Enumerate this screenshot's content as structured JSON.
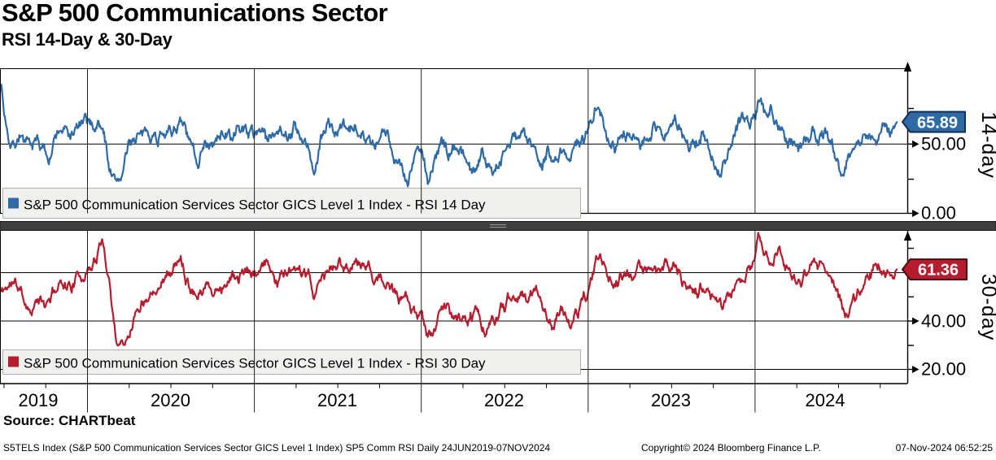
{
  "header": {
    "title": "S&P 500 Communications Sector",
    "subtitle": "RSI 14-Day & 30-Day"
  },
  "footer": {
    "source": "Source: CHARTbeat",
    "info_left": "S5TELS Index (S&P 500 Communication Services Sector GICS Level 1 Index) SP5 Comm RSI  Daily 24JUN2019-07NOV2024",
    "copyright": "Copyright© 2024 Bloomberg Finance L.P.",
    "timestamp": "07-Nov-2024 06:52:25"
  },
  "chart_data": {
    "type": "line",
    "x_range": [
      2019.48,
      2024.85
    ],
    "x_axis": {
      "year_labels": [
        "2019",
        "2020",
        "2021",
        "2022",
        "2023",
        "2024"
      ],
      "year_boundaries": [
        2020,
        2021,
        2022,
        2023,
        2024
      ]
    },
    "panels": [
      {
        "name": "rsi14",
        "axis_label": "14-day",
        "legend": "S&P 500 Communication Services Sector GICS Level 1 Index - RSI 14 Day",
        "color": "#2d6aa6",
        "flag_border": "#14304f",
        "last_value": "65.89",
        "ylim": [
          0,
          105
        ],
        "tick_labels": [
          {
            "value": 50,
            "label": "50.00"
          },
          {
            "value": 0,
            "label": "0.00"
          }
        ],
        "minor_ticks": [
          25,
          75
        ],
        "gridlines": [
          50
        ],
        "noise": {
          "seed": 7,
          "decay": 0.86,
          "step": 7.0,
          "ripple": 1.6,
          "points": 1300
        },
        "anchors": [
          [
            2019.485,
            92
          ],
          [
            2019.5,
            72
          ],
          [
            2019.53,
            58
          ],
          [
            2019.56,
            52
          ],
          [
            2019.6,
            60
          ],
          [
            2019.63,
            50
          ],
          [
            2019.66,
            44
          ],
          [
            2019.7,
            53
          ],
          [
            2019.73,
            46
          ],
          [
            2019.77,
            42
          ],
          [
            2019.81,
            55
          ],
          [
            2019.85,
            62
          ],
          [
            2019.89,
            55
          ],
          [
            2019.93,
            60
          ],
          [
            2019.97,
            64
          ],
          [
            2020.03,
            62
          ],
          [
            2020.07,
            66
          ],
          [
            2020.1,
            55
          ],
          [
            2020.13,
            35
          ],
          [
            2020.17,
            21
          ],
          [
            2020.21,
            30
          ],
          [
            2020.25,
            48
          ],
          [
            2020.3,
            58
          ],
          [
            2020.34,
            52
          ],
          [
            2020.38,
            60
          ],
          [
            2020.42,
            55
          ],
          [
            2020.46,
            64
          ],
          [
            2020.5,
            57
          ],
          [
            2020.54,
            66
          ],
          [
            2020.58,
            60
          ],
          [
            2020.62,
            45
          ],
          [
            2020.66,
            38
          ],
          [
            2020.7,
            56
          ],
          [
            2020.74,
            46
          ],
          [
            2020.78,
            52
          ],
          [
            2020.82,
            60
          ],
          [
            2020.86,
            54
          ],
          [
            2020.9,
            58
          ],
          [
            2020.94,
            62
          ],
          [
            2021.0,
            57
          ],
          [
            2021.04,
            64
          ],
          [
            2021.08,
            52
          ],
          [
            2021.12,
            60
          ],
          [
            2021.16,
            66
          ],
          [
            2021.2,
            58
          ],
          [
            2021.24,
            64
          ],
          [
            2021.28,
            50
          ],
          [
            2021.32,
            45
          ],
          [
            2021.36,
            29
          ],
          [
            2021.4,
            50
          ],
          [
            2021.44,
            66
          ],
          [
            2021.48,
            58
          ],
          [
            2021.52,
            62
          ],
          [
            2021.56,
            54
          ],
          [
            2021.6,
            60
          ],
          [
            2021.64,
            65
          ],
          [
            2021.68,
            55
          ],
          [
            2021.72,
            45
          ],
          [
            2021.76,
            52
          ],
          [
            2021.8,
            58
          ],
          [
            2021.84,
            44
          ],
          [
            2021.88,
            38
          ],
          [
            2021.92,
            24
          ],
          [
            2021.96,
            42
          ],
          [
            2022.0,
            48
          ],
          [
            2022.04,
            24
          ],
          [
            2022.08,
            40
          ],
          [
            2022.12,
            50
          ],
          [
            2022.16,
            42
          ],
          [
            2022.2,
            52
          ],
          [
            2022.24,
            45
          ],
          [
            2022.28,
            35
          ],
          [
            2022.32,
            29
          ],
          [
            2022.36,
            45
          ],
          [
            2022.4,
            38
          ],
          [
            2022.44,
            33
          ],
          [
            2022.48,
            42
          ],
          [
            2022.52,
            48
          ],
          [
            2022.56,
            55
          ],
          [
            2022.6,
            60
          ],
          [
            2022.64,
            50
          ],
          [
            2022.68,
            42
          ],
          [
            2022.72,
            33
          ],
          [
            2022.76,
            44
          ],
          [
            2022.8,
            40
          ],
          [
            2022.84,
            50
          ],
          [
            2022.88,
            44
          ],
          [
            2022.92,
            52
          ],
          [
            2022.96,
            50
          ],
          [
            2023.0,
            58
          ],
          [
            2023.04,
            76
          ],
          [
            2023.08,
            66
          ],
          [
            2023.12,
            55
          ],
          [
            2023.16,
            48
          ],
          [
            2023.2,
            60
          ],
          [
            2023.24,
            55
          ],
          [
            2023.28,
            62
          ],
          [
            2023.32,
            52
          ],
          [
            2023.36,
            60
          ],
          [
            2023.4,
            66
          ],
          [
            2023.44,
            58
          ],
          [
            2023.48,
            64
          ],
          [
            2023.52,
            68
          ],
          [
            2023.56,
            58
          ],
          [
            2023.6,
            50
          ],
          [
            2023.64,
            44
          ],
          [
            2023.68,
            55
          ],
          [
            2023.72,
            48
          ],
          [
            2023.76,
            40
          ],
          [
            2023.8,
            31
          ],
          [
            2023.84,
            45
          ],
          [
            2023.88,
            58
          ],
          [
            2023.92,
            66
          ],
          [
            2023.96,
            62
          ],
          [
            2024.0,
            72
          ],
          [
            2024.02,
            85
          ],
          [
            2024.06,
            70
          ],
          [
            2024.1,
            74
          ],
          [
            2024.14,
            66
          ],
          [
            2024.18,
            58
          ],
          [
            2024.22,
            52
          ],
          [
            2024.26,
            46
          ],
          [
            2024.3,
            55
          ],
          [
            2024.34,
            62
          ],
          [
            2024.38,
            56
          ],
          [
            2024.42,
            60
          ],
          [
            2024.46,
            52
          ],
          [
            2024.5,
            34
          ],
          [
            2024.53,
            30
          ],
          [
            2024.57,
            45
          ],
          [
            2024.61,
            52
          ],
          [
            2024.65,
            58
          ],
          [
            2024.69,
            52
          ],
          [
            2024.73,
            58
          ],
          [
            2024.77,
            64
          ],
          [
            2024.81,
            58
          ],
          [
            2024.85,
            65.89
          ]
        ]
      },
      {
        "name": "rsi30",
        "axis_label": "30-day",
        "legend": "S&P 500 Communication Services Sector GICS Level 1 Index - RSI 30 Day",
        "color": "#b51c2e",
        "flag_border": "#4d0a12",
        "last_value": "61.36",
        "ylim": [
          15,
          77
        ],
        "tick_labels": [
          {
            "value": 40,
            "label": "40.00"
          },
          {
            "value": 20,
            "label": "20.00"
          }
        ],
        "minor_ticks": [
          30,
          50,
          70
        ],
        "gridlines": [
          60,
          40,
          20
        ],
        "noise": {
          "seed": 11,
          "decay": 0.88,
          "step": 3.6,
          "ripple": 1.0,
          "points": 1300
        },
        "anchors": [
          [
            2019.485,
            52
          ],
          [
            2019.55,
            56
          ],
          [
            2019.6,
            52
          ],
          [
            2019.65,
            46
          ],
          [
            2019.7,
            49
          ],
          [
            2019.75,
            45
          ],
          [
            2019.8,
            52
          ],
          [
            2019.85,
            57
          ],
          [
            2019.9,
            55
          ],
          [
            2019.95,
            59
          ],
          [
            2020.0,
            62
          ],
          [
            2020.05,
            67
          ],
          [
            2020.09,
            72
          ],
          [
            2020.13,
            58
          ],
          [
            2020.17,
            34
          ],
          [
            2020.21,
            32
          ],
          [
            2020.26,
            40
          ],
          [
            2020.31,
            48
          ],
          [
            2020.36,
            53
          ],
          [
            2020.41,
            57
          ],
          [
            2020.46,
            60
          ],
          [
            2020.51,
            62
          ],
          [
            2020.56,
            65
          ],
          [
            2020.61,
            57
          ],
          [
            2020.66,
            52
          ],
          [
            2020.71,
            57
          ],
          [
            2020.76,
            52
          ],
          [
            2020.81,
            56
          ],
          [
            2020.86,
            59
          ],
          [
            2020.91,
            58
          ],
          [
            2020.96,
            60
          ],
          [
            2021.02,
            59
          ],
          [
            2021.08,
            62
          ],
          [
            2021.14,
            57
          ],
          [
            2021.2,
            62
          ],
          [
            2021.26,
            58
          ],
          [
            2021.32,
            56
          ],
          [
            2021.36,
            50
          ],
          [
            2021.4,
            56
          ],
          [
            2021.44,
            60
          ],
          [
            2021.5,
            63
          ],
          [
            2021.56,
            62
          ],
          [
            2021.62,
            66
          ],
          [
            2021.66,
            63
          ],
          [
            2021.72,
            60
          ],
          [
            2021.78,
            56
          ],
          [
            2021.84,
            50
          ],
          [
            2021.9,
            46
          ],
          [
            2021.96,
            44
          ],
          [
            2022.0,
            40
          ],
          [
            2022.04,
            32
          ],
          [
            2022.09,
            40
          ],
          [
            2022.14,
            46
          ],
          [
            2022.19,
            42
          ],
          [
            2022.24,
            38
          ],
          [
            2022.29,
            41
          ],
          [
            2022.34,
            43
          ],
          [
            2022.39,
            36
          ],
          [
            2022.44,
            40
          ],
          [
            2022.49,
            45
          ],
          [
            2022.54,
            50
          ],
          [
            2022.59,
            54
          ],
          [
            2022.64,
            48
          ],
          [
            2022.69,
            53
          ],
          [
            2022.74,
            46
          ],
          [
            2022.79,
            39
          ],
          [
            2022.84,
            44
          ],
          [
            2022.89,
            40
          ],
          [
            2022.94,
            44
          ],
          [
            2023.0,
            52
          ],
          [
            2023.05,
            66
          ],
          [
            2023.1,
            61
          ],
          [
            2023.15,
            56
          ],
          [
            2023.2,
            59
          ],
          [
            2023.25,
            57
          ],
          [
            2023.3,
            60
          ],
          [
            2023.35,
            62
          ],
          [
            2023.4,
            60
          ],
          [
            2023.45,
            61
          ],
          [
            2023.5,
            64
          ],
          [
            2023.55,
            61
          ],
          [
            2023.6,
            55
          ],
          [
            2023.65,
            52
          ],
          [
            2023.7,
            55
          ],
          [
            2023.75,
            50
          ],
          [
            2023.8,
            42
          ],
          [
            2023.85,
            47
          ],
          [
            2023.9,
            57
          ],
          [
            2023.95,
            61
          ],
          [
            2024.0,
            66
          ],
          [
            2024.02,
            74
          ],
          [
            2024.06,
            68
          ],
          [
            2024.1,
            66
          ],
          [
            2024.14,
            70
          ],
          [
            2024.18,
            64
          ],
          [
            2024.22,
            60
          ],
          [
            2024.26,
            56
          ],
          [
            2024.3,
            58
          ],
          [
            2024.34,
            61
          ],
          [
            2024.38,
            59
          ],
          [
            2024.42,
            62
          ],
          [
            2024.46,
            60
          ],
          [
            2024.5,
            50
          ],
          [
            2024.54,
            43
          ],
          [
            2024.58,
            48
          ],
          [
            2024.62,
            52
          ],
          [
            2024.66,
            56
          ],
          [
            2024.7,
            59
          ],
          [
            2024.74,
            62
          ],
          [
            2024.78,
            58
          ],
          [
            2024.82,
            59
          ],
          [
            2024.85,
            61.36
          ]
        ]
      }
    ]
  }
}
